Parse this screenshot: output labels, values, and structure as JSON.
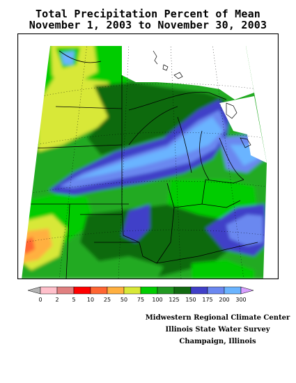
{
  "title": {
    "line1": "Total Precipitation Percent of Mean",
    "line2": "November 1, 2003 to November 30, 2003"
  },
  "legend": {
    "ticks": [
      "0",
      "2",
      "5",
      "10",
      "25",
      "50",
      "75",
      "100",
      "125",
      "150",
      "175",
      "200",
      "300"
    ],
    "colors": [
      "#b4b4b4",
      "#ffc0cb",
      "#e08080",
      "#ff0000",
      "#ff6633",
      "#ffb040",
      "#d8e838",
      "#00cc00",
      "#229922",
      "#116a11",
      "#4040c8",
      "#6b88f0",
      "#6ab4ff",
      "#d8a0ff"
    ]
  },
  "credits": {
    "line1": "Midwestern Regional Climate Center",
    "line2": "Illinois State Water Survey",
    "line3": "Champaign, Illinois"
  },
  "map_colors": {
    "green": "#00cc00",
    "lightgreen": "#22aa22",
    "darkgreen": "#116a11",
    "yellowgreen": "#d8e838",
    "orange": "#ffb040",
    "redorange": "#ff6633",
    "indigo": "#4040c8",
    "blue": "#6b88f0",
    "lightblue": "#6ab4ff"
  }
}
